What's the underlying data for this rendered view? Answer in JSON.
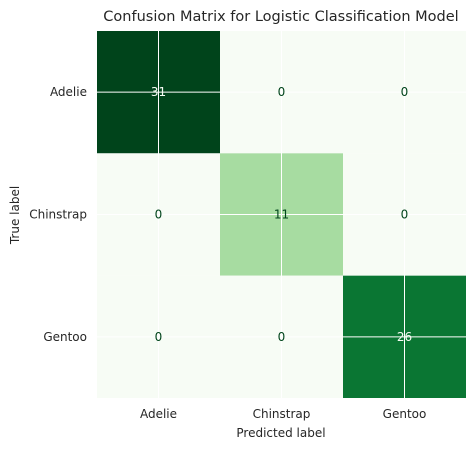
{
  "chart_data": {
    "type": "heatmap",
    "title": "Confusion Matrix for Logistic Classification Model",
    "xlabel": "Predicted label",
    "ylabel": "True label",
    "x_categories": [
      "Adelie",
      "Chinstrap",
      "Gentoo"
    ],
    "y_categories": [
      "Adelie",
      "Chinstrap",
      "Gentoo"
    ],
    "values": [
      [
        31,
        0,
        0
      ],
      [
        0,
        11,
        0
      ],
      [
        0,
        0,
        26
      ]
    ],
    "colormap": "Greens",
    "color_range": [
      0,
      31
    ],
    "grid": true,
    "colors": {
      "low": "#f7fcf5",
      "high": "#00441b",
      "grid": "#ffffff",
      "text_dark": "#00441b",
      "text_light": "#f7fcf5"
    }
  }
}
